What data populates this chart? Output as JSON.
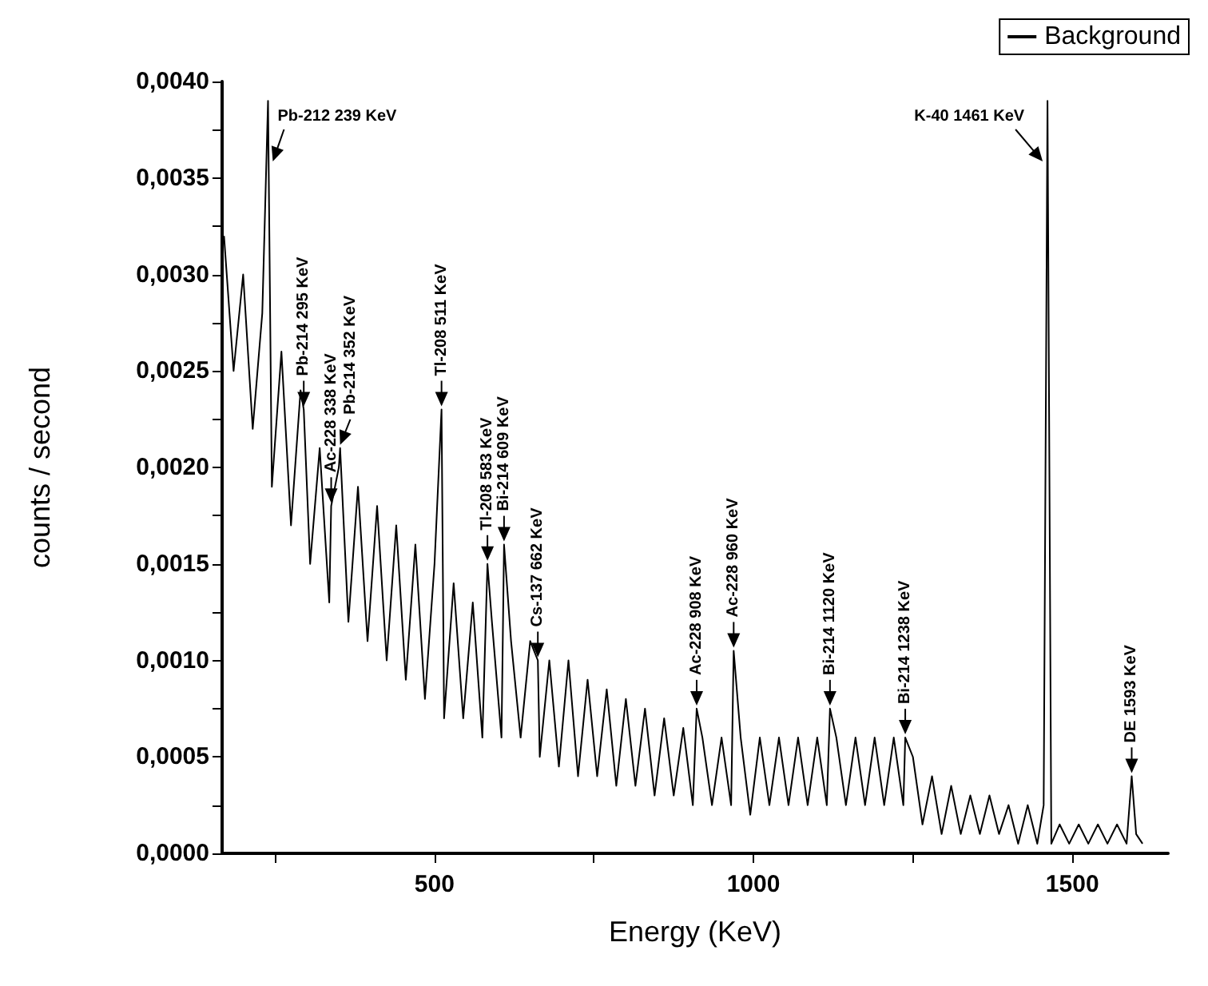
{
  "chart_data": {
    "type": "line",
    "xlabel": "Energy (KeV)",
    "ylabel": "counts / second",
    "legend": "top right",
    "grid": false,
    "marker": "none",
    "line_style": "solid",
    "xlim": [
      167,
      1650
    ],
    "xticks": [
      {
        "value": 250,
        "label": null
      },
      500,
      {
        "value": 750,
        "label": null
      },
      1000,
      {
        "value": 1250,
        "label": null
      },
      1500
    ],
    "ylim": [
      0,
      0.004
    ],
    "yticks": [
      {
        "value": 0,
        "label": "0,0000"
      },
      {
        "value": 0.00025,
        "label": null
      },
      {
        "value": 0.0005,
        "label": "0,0005"
      },
      {
        "value": 0.00075,
        "label": null
      },
      {
        "value": 0.001,
        "label": "0,0010"
      },
      {
        "value": 0.00125,
        "label": null
      },
      {
        "value": 0.0015,
        "label": "0,0015"
      },
      {
        "value": 0.00175,
        "label": null
      },
      {
        "value": 0.002,
        "label": "0,0020"
      },
      {
        "value": 0.00225,
        "label": null
      },
      {
        "value": 0.0025,
        "label": "0,0025"
      },
      {
        "value": 0.00275,
        "label": null
      },
      {
        "value": 0.003,
        "label": "0,0030"
      },
      {
        "value": 0.00325,
        "label": null
      },
      {
        "value": 0.0035,
        "label": "0,0035"
      },
      {
        "value": 0.00375,
        "label": null
      },
      {
        "value": 0.004,
        "label": "0,0040"
      }
    ],
    "series": [
      {
        "name": "Background",
        "color": "#000000",
        "x": [
          170,
          185,
          200,
          215,
          230,
          239,
          245,
          260,
          275,
          290,
          295,
          305,
          320,
          335,
          338,
          350,
          352,
          365,
          380,
          395,
          410,
          425,
          440,
          455,
          470,
          485,
          500,
          511,
          515,
          530,
          545,
          560,
          575,
          583,
          590,
          605,
          609,
          620,
          635,
          650,
          662,
          665,
          680,
          695,
          710,
          725,
          740,
          755,
          770,
          785,
          800,
          815,
          830,
          845,
          860,
          875,
          890,
          905,
          911,
          920,
          935,
          950,
          965,
          969,
          980,
          995,
          1010,
          1025,
          1040,
          1055,
          1070,
          1085,
          1100,
          1115,
          1120,
          1130,
          1145,
          1160,
          1175,
          1190,
          1205,
          1220,
          1235,
          1238,
          1250,
          1265,
          1280,
          1295,
          1310,
          1325,
          1340,
          1355,
          1370,
          1385,
          1400,
          1415,
          1430,
          1445,
          1455,
          1461,
          1467,
          1480,
          1495,
          1510,
          1525,
          1540,
          1555,
          1570,
          1585,
          1593,
          1600,
          1610
        ],
        "values": [
          0.0032,
          0.0025,
          0.003,
          0.0022,
          0.0028,
          0.0039,
          0.0019,
          0.0026,
          0.0017,
          0.0024,
          0.0023,
          0.0015,
          0.0021,
          0.0013,
          0.0018,
          0.002,
          0.0021,
          0.0012,
          0.0019,
          0.0011,
          0.0018,
          0.001,
          0.0017,
          0.0009,
          0.0016,
          0.0008,
          0.0015,
          0.0023,
          0.0007,
          0.0014,
          0.0007,
          0.0013,
          0.0006,
          0.0015,
          0.0012,
          0.0006,
          0.0016,
          0.0011,
          0.0006,
          0.0011,
          0.001,
          0.0005,
          0.001,
          0.00045,
          0.001,
          0.0004,
          0.0009,
          0.0004,
          0.00085,
          0.00035,
          0.0008,
          0.00035,
          0.00075,
          0.0003,
          0.0007,
          0.0003,
          0.00065,
          0.00025,
          0.00075,
          0.0006,
          0.00025,
          0.0006,
          0.00025,
          0.00105,
          0.0006,
          0.0002,
          0.0006,
          0.00025,
          0.0006,
          0.00025,
          0.0006,
          0.00025,
          0.0006,
          0.00025,
          0.00075,
          0.0006,
          0.00025,
          0.0006,
          0.00025,
          0.0006,
          0.00025,
          0.0006,
          0.00025,
          0.0006,
          0.0005,
          0.00015,
          0.0004,
          0.0001,
          0.00035,
          0.0001,
          0.0003,
          0.0001,
          0.0003,
          0.0001,
          0.00025,
          5e-05,
          0.00025,
          5e-05,
          0.00025,
          0.0039,
          5e-05,
          0.00015,
          5e-05,
          0.00015,
          5e-05,
          0.00015,
          5e-05,
          0.00015,
          5e-05,
          0.0004,
          0.0001,
          5e-05
        ]
      }
    ],
    "annotations": [
      {
        "text": "Pb-212 239 KeV",
        "x": 239,
        "y": 0.0039
      },
      {
        "text": "Pb-214 295 KeV",
        "x": 295,
        "y": 0.0023
      },
      {
        "text": "Ac-228 338 KeV",
        "x": 338,
        "y": 0.0018
      },
      {
        "text": "Pb-214 352 KeV",
        "x": 352,
        "y": 0.0021
      },
      {
        "text": "Tl-208 511 KeV",
        "x": 511,
        "y": 0.0023
      },
      {
        "text": "Tl-208 583 KeV",
        "x": 583,
        "y": 0.0015
      },
      {
        "text": "Bi-214 609 KeV",
        "x": 609,
        "y": 0.0016
      },
      {
        "text": "Cs-137 662 KeV",
        "x": 662,
        "y": 0.001
      },
      {
        "text": "Ac-228 908 KeV",
        "x": 911,
        "y": 0.00075
      },
      {
        "text": "Ac-228 960 KeV",
        "x": 969,
        "y": 0.00105
      },
      {
        "text": "Bi-214 1120 KeV",
        "x": 1120,
        "y": 0.00075
      },
      {
        "text": "Bi-214 1238 KeV",
        "x": 1238,
        "y": 0.0006
      },
      {
        "text": "K-40 1461 KeV",
        "x": 1461,
        "y": 0.0039
      },
      {
        "text": "DE 1593 KeV",
        "x": 1593,
        "y": 0.0004
      }
    ]
  }
}
